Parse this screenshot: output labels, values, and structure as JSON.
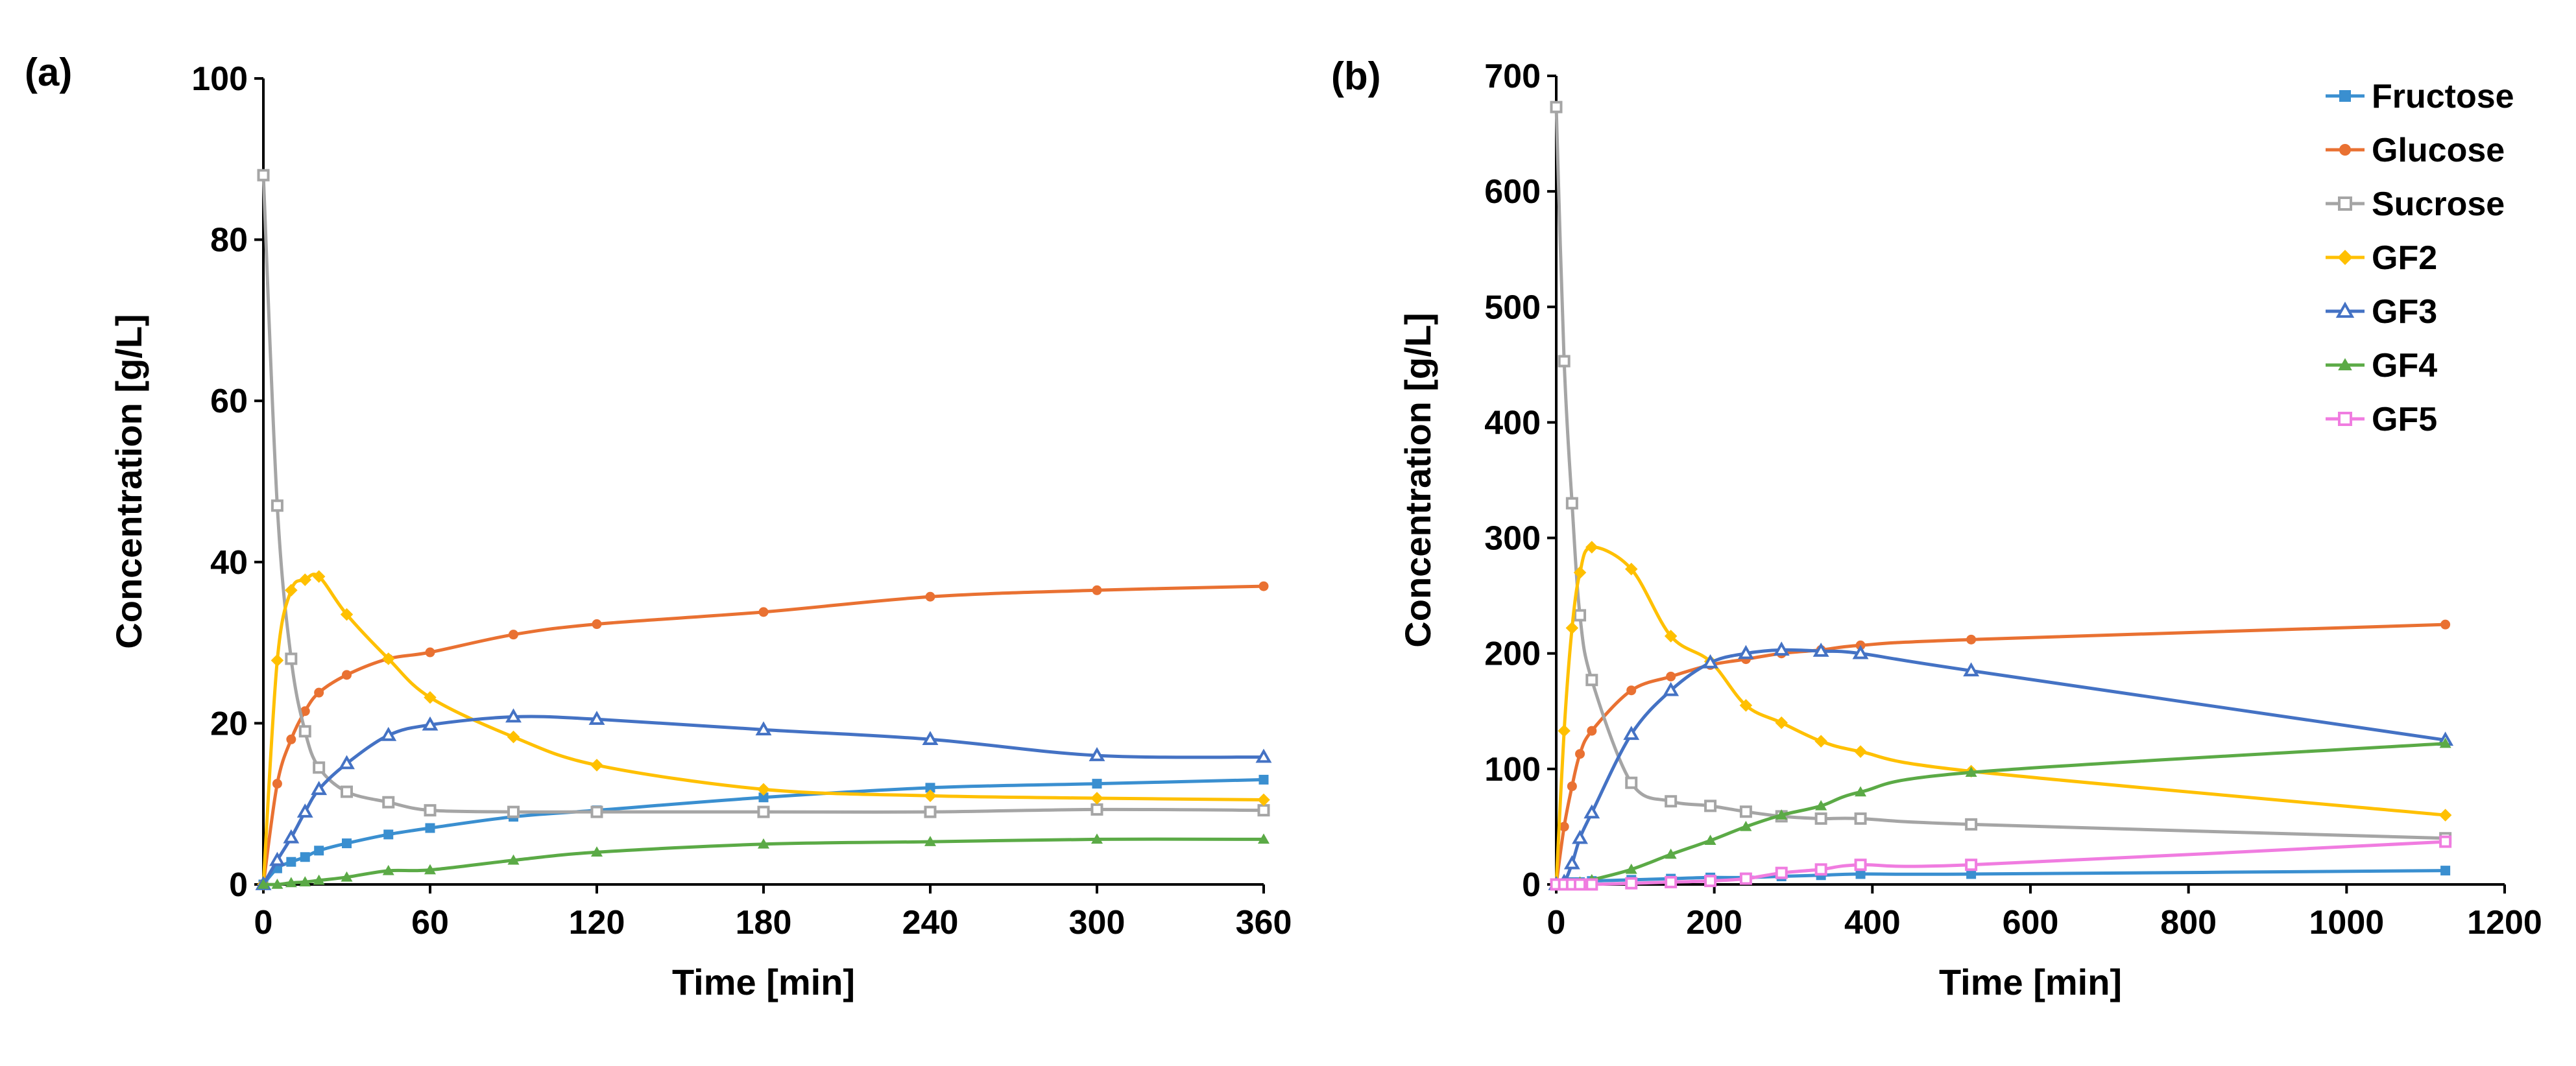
{
  "chart_data": [
    {
      "type": "line",
      "panel_label": "(a)",
      "xlabel": "Time [min]",
      "ylabel": "Concentration [g/L]",
      "xlim": [
        0,
        360
      ],
      "ylim": [
        0,
        100
      ],
      "xticks": [
        0,
        60,
        120,
        180,
        240,
        300,
        360
      ],
      "yticks": [
        0,
        20,
        40,
        60,
        80,
        100
      ],
      "grid": false,
      "series": [
        {
          "name": "Fructose",
          "key": "fructose",
          "x": [
            0,
            5,
            10,
            15,
            20,
            30,
            45,
            60,
            90,
            120,
            180,
            240,
            300,
            360
          ],
          "y": [
            0,
            2,
            2.8,
            3.4,
            4.2,
            5.1,
            6.2,
            7,
            8.4,
            9.2,
            10.8,
            12,
            12.5,
            13
          ]
        },
        {
          "name": "Glucose",
          "key": "glucose",
          "x": [
            0,
            5,
            10,
            15,
            20,
            30,
            45,
            60,
            90,
            120,
            180,
            240,
            300,
            360
          ],
          "y": [
            0,
            12.5,
            18,
            21.5,
            23.8,
            26,
            28,
            28.8,
            31,
            32.3,
            33.8,
            35.7,
            36.5,
            37
          ]
        },
        {
          "name": "Sucrose",
          "key": "sucrose",
          "x": [
            0,
            5,
            10,
            15,
            20,
            30,
            45,
            60,
            90,
            120,
            180,
            240,
            300,
            360
          ],
          "y": [
            88,
            47,
            28,
            19,
            14.5,
            11.5,
            10.2,
            9.2,
            9,
            9,
            9,
            9,
            9.3,
            9.2
          ]
        },
        {
          "name": "GF2",
          "key": "gf2",
          "x": [
            0,
            5,
            10,
            15,
            20,
            30,
            45,
            60,
            90,
            120,
            180,
            240,
            300,
            360
          ],
          "y": [
            0,
            27.8,
            36.5,
            37.8,
            38.2,
            33.5,
            28,
            23.2,
            18.3,
            14.8,
            11.8,
            11,
            10.7,
            10.5
          ]
        },
        {
          "name": "GF3",
          "key": "gf3",
          "x": [
            0,
            5,
            10,
            15,
            20,
            30,
            45,
            60,
            90,
            120,
            180,
            240,
            300,
            360
          ],
          "y": [
            0,
            3,
            5.8,
            9,
            11.8,
            15,
            18.5,
            19.8,
            20.8,
            20.5,
            19.2,
            18,
            16,
            15.8
          ]
        },
        {
          "name": "GF4",
          "key": "gf4",
          "x": [
            0,
            5,
            10,
            15,
            20,
            30,
            45,
            60,
            90,
            120,
            180,
            240,
            300,
            360
          ],
          "y": [
            0,
            0,
            0.2,
            0.3,
            0.5,
            0.9,
            1.7,
            1.8,
            3,
            4,
            5,
            5.3,
            5.6,
            5.6
          ]
        }
      ]
    },
    {
      "type": "line",
      "panel_label": "(b)",
      "xlabel": "Time [min]",
      "ylabel": "Concentration [g/L]",
      "xlim": [
        0,
        1200
      ],
      "ylim": [
        0,
        700
      ],
      "xticks": [
        0,
        200,
        400,
        600,
        800,
        1000,
        1200
      ],
      "yticks": [
        0,
        100,
        200,
        300,
        400,
        500,
        600,
        700
      ],
      "grid": false,
      "legend_position": "top-right",
      "series": [
        {
          "name": "Fructose",
          "key": "fructose",
          "x": [
            0,
            10,
            20,
            30,
            45,
            95,
            145,
            195,
            240,
            285,
            335,
            385,
            525,
            1125
          ],
          "y": [
            0,
            1,
            2,
            2,
            3,
            4,
            5,
            6,
            6,
            7,
            8,
            9,
            9,
            12
          ]
        },
        {
          "name": "Glucose",
          "key": "glucose",
          "x": [
            0,
            10,
            20,
            30,
            45,
            95,
            145,
            195,
            240,
            285,
            335,
            385,
            525,
            1125
          ],
          "y": [
            0,
            50,
            85,
            113,
            133,
            168,
            180,
            190,
            195,
            200,
            203,
            207,
            212,
            225
          ]
        },
        {
          "name": "Sucrose",
          "key": "sucrose",
          "x": [
            0,
            10,
            20,
            30,
            45,
            95,
            145,
            195,
            240,
            285,
            335,
            385,
            525,
            1125
          ],
          "y": [
            673,
            453,
            330,
            233,
            177,
            88,
            72,
            68,
            63,
            59,
            57,
            57,
            52,
            40
          ]
        },
        {
          "name": "GF2",
          "key": "gf2",
          "x": [
            0,
            10,
            20,
            30,
            45,
            95,
            145,
            195,
            240,
            285,
            335,
            385,
            525,
            1125
          ],
          "y": [
            0,
            133,
            222,
            270,
            292,
            273,
            215,
            193,
            155,
            140,
            124,
            115,
            98,
            60
          ]
        },
        {
          "name": "GF3",
          "key": "gf3",
          "x": [
            0,
            10,
            20,
            30,
            45,
            95,
            145,
            195,
            240,
            285,
            335,
            385,
            525,
            1125
          ],
          "y": [
            0,
            2,
            18,
            40,
            62,
            130,
            168,
            192,
            200,
            203,
            202,
            200,
            185,
            125
          ]
        },
        {
          "name": "GF4",
          "key": "gf4",
          "x": [
            0,
            10,
            20,
            30,
            45,
            95,
            145,
            195,
            240,
            285,
            335,
            385,
            525,
            1125
          ],
          "y": [
            0,
            0,
            1,
            2,
            4,
            13,
            26,
            38,
            50,
            60,
            68,
            80,
            97,
            122
          ]
        },
        {
          "name": "GF5",
          "key": "gf5",
          "x": [
            0,
            10,
            20,
            30,
            45,
            95,
            145,
            195,
            240,
            285,
            335,
            385,
            525,
            1125
          ],
          "y": [
            0,
            0,
            0,
            0,
            0,
            1,
            2,
            3,
            5,
            10,
            13,
            17,
            17,
            37
          ]
        }
      ]
    }
  ],
  "legend": {
    "position": "top-right",
    "entries": [
      {
        "name": "Fructose",
        "key": "fructose"
      },
      {
        "name": "Glucose",
        "key": "glucose"
      },
      {
        "name": "Sucrose",
        "key": "sucrose"
      },
      {
        "name": "GF2",
        "key": "gf2"
      },
      {
        "name": "GF3",
        "key": "gf3"
      },
      {
        "name": "GF4",
        "key": "gf4"
      },
      {
        "name": "GF5",
        "key": "gf5"
      }
    ]
  },
  "series_styles": {
    "fructose": {
      "color": "#3A8FD0",
      "marker": "square-filled",
      "marker_icon": "filled-square-marker-icon"
    },
    "glucose": {
      "color": "#E97132",
      "marker": "circle-filled",
      "marker_icon": "filled-circle-marker-icon"
    },
    "sucrose": {
      "color": "#A5A5A5",
      "marker": "square-open",
      "marker_icon": "open-square-marker-icon"
    },
    "gf2": {
      "color": "#FFC000",
      "marker": "diamond-filled",
      "marker_icon": "filled-diamond-marker-icon"
    },
    "gf3": {
      "color": "#4472C4",
      "marker": "triangle-open",
      "marker_icon": "open-triangle-marker-icon"
    },
    "gf4": {
      "color": "#5BAA46",
      "marker": "triangle-filled",
      "marker_icon": "filled-triangle-marker-icon"
    },
    "gf5": {
      "color": "#F07CE0",
      "marker": "square-open",
      "marker_icon": "open-square-marker-icon"
    }
  }
}
